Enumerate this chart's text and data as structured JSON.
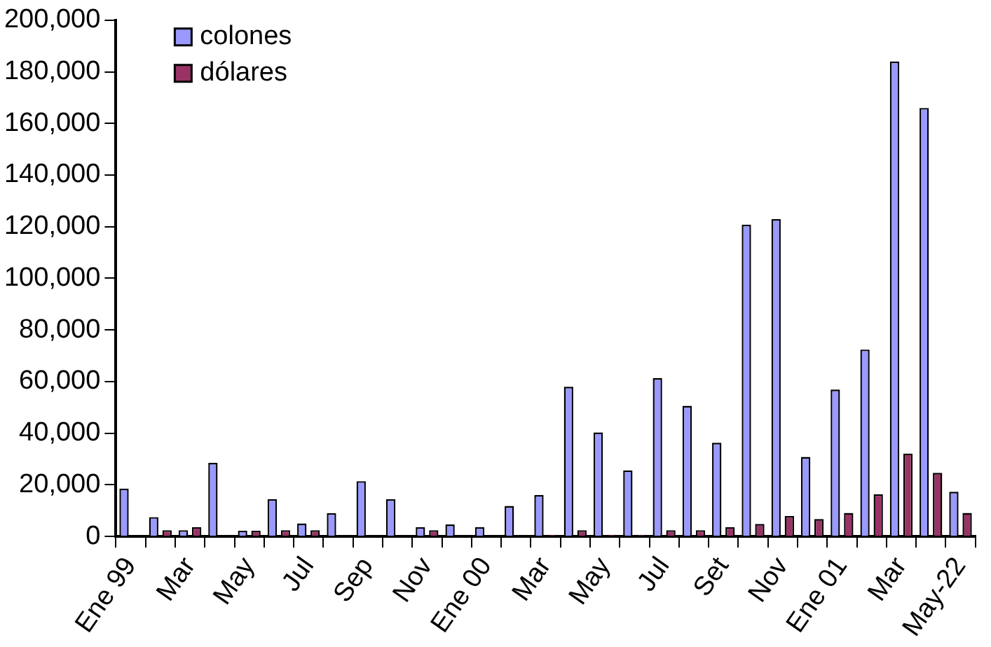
{
  "chart_data": {
    "type": "bar",
    "categories": [
      "Ene 99",
      null,
      "Mar",
      null,
      "May",
      null,
      "Jul",
      null,
      "Sep",
      null,
      "Nov",
      null,
      "Ene 00",
      null,
      "Mar",
      null,
      "May",
      null,
      "Jul",
      null,
      "Set",
      null,
      "Nov",
      null,
      "Ene 01",
      null,
      "Mar",
      null,
      "May-22"
    ],
    "series": [
      {
        "name": "colones",
        "color": "#9999ff",
        "values": [
          18500,
          7500,
          2400,
          28500,
          2200,
          14400,
          5000,
          9000,
          21400,
          14400,
          3600,
          4600,
          3600,
          11800,
          16000,
          58000,
          40300,
          25600,
          61300,
          50600,
          36300,
          120800,
          123000,
          30800,
          56900,
          72400,
          184000,
          166000,
          17300
        ]
      },
      {
        "name": "dólares",
        "color": "#993366",
        "values": [
          null,
          2400,
          3600,
          null,
          2200,
          2400,
          2400,
          null,
          null,
          null,
          2400,
          null,
          null,
          null,
          600,
          2400,
          600,
          600,
          2400,
          2400,
          3600,
          4800,
          7900,
          6700,
          9100,
          16300,
          32100,
          24600,
          9100
        ]
      }
    ],
    "ylim": [
      0,
      200000
    ],
    "yticks": [
      {
        "value": 0,
        "label": "0"
      },
      {
        "value": 20000,
        "label": "20,000"
      },
      {
        "value": 40000,
        "label": "40,000"
      },
      {
        "value": 60000,
        "label": "60,000"
      },
      {
        "value": 80000,
        "label": "80,000"
      },
      {
        "value": 100000,
        "label": "100,000"
      },
      {
        "value": 120000,
        "label": "120,000"
      },
      {
        "value": 140000,
        "label": "140,000"
      },
      {
        "value": 160000,
        "label": "160,000"
      },
      {
        "value": 180000,
        "label": "180,000"
      },
      {
        "value": 200000,
        "label": "200,000"
      }
    ],
    "grid": false,
    "legend": "top left"
  }
}
